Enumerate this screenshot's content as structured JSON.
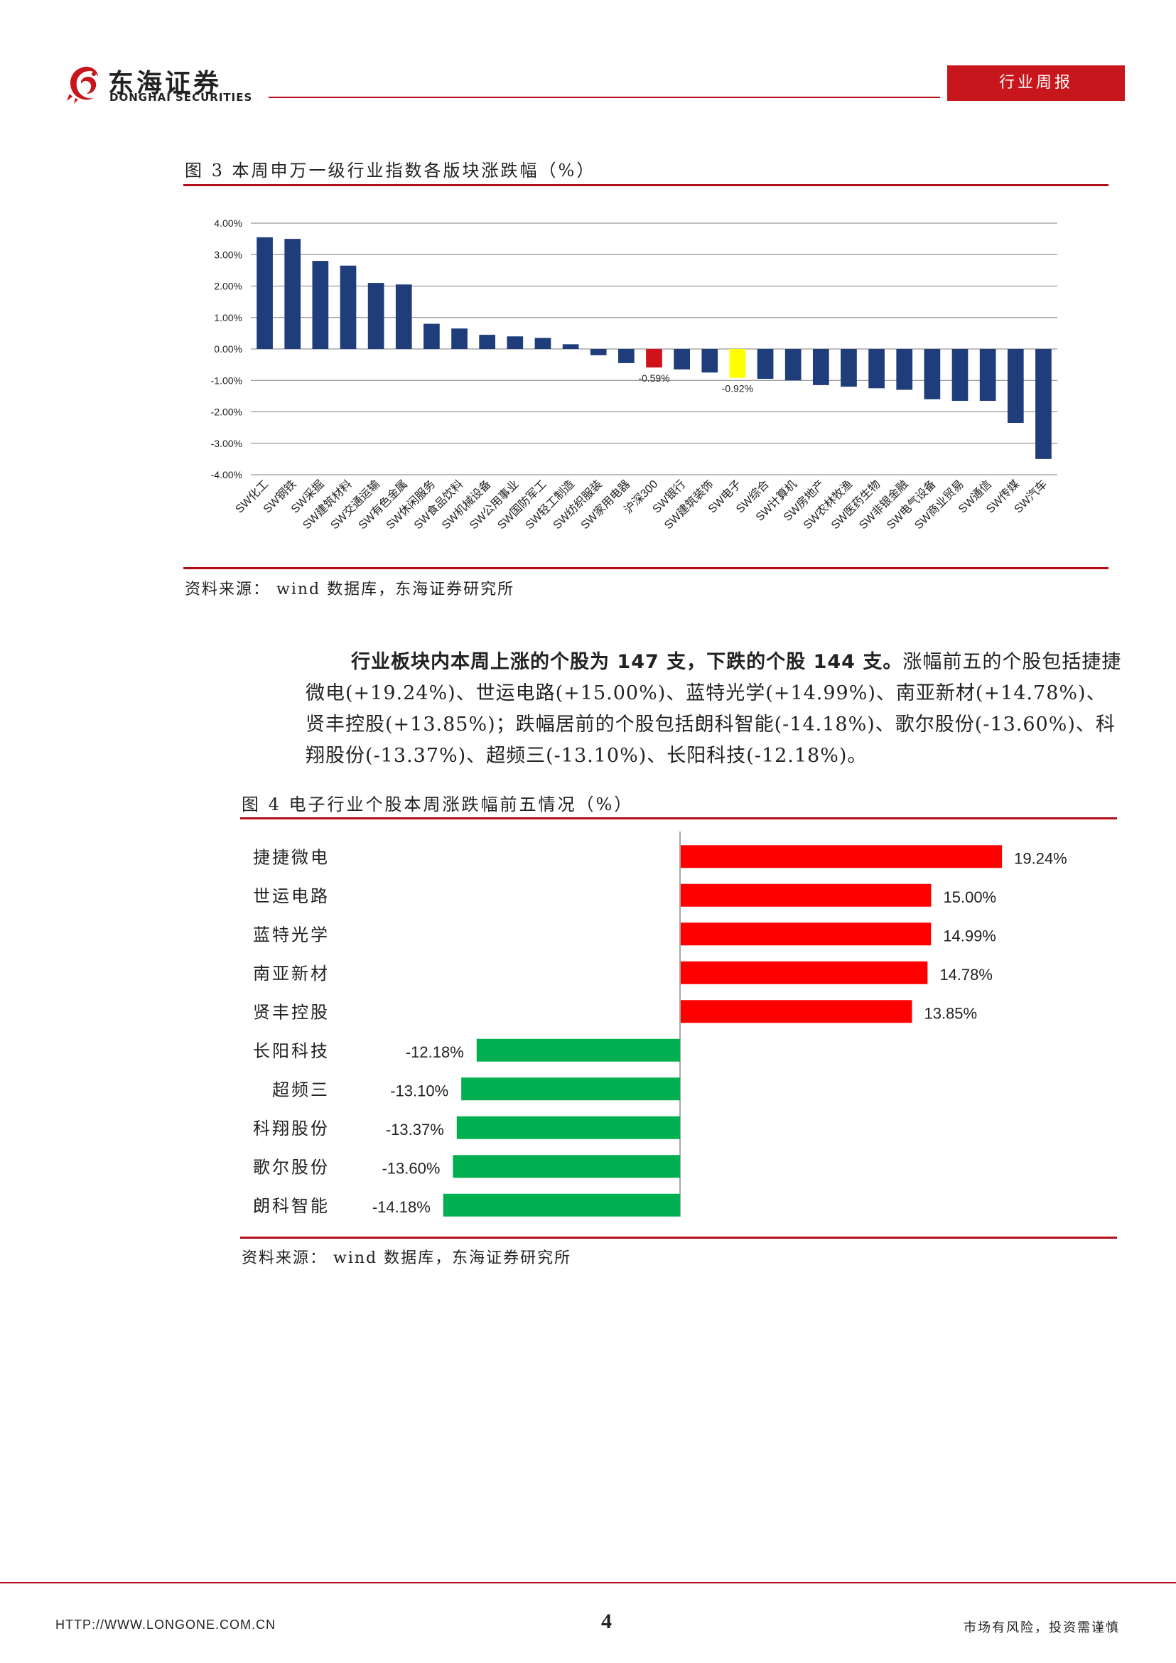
{
  "header": {
    "company_cn": "东海证券",
    "company_en": "DONGHAI SECURITIES",
    "report_type": "行业周报",
    "brand_color": "#c8161d"
  },
  "figure3": {
    "caption": "图 3 本周申万一级行业指数各版块涨跌幅（%）",
    "source": "资料来源： wind 数据库，东海证券研究所"
  },
  "paragraph": {
    "lead_1": "行业板块内本周上涨的个股为 ",
    "up_count": "147",
    "lead_2": " 支，下跌的个股 ",
    "down_count": "144",
    "lead_3": " 支。",
    "body": "涨幅前五的个股包括捷捷微电(+19.24%)、世运电路(+15.00%)、蓝特光学(+14.99%)、南亚新材(+14.78%)、贤丰控股(+13.85%)；跌幅居前的个股包括朗科智能(-14.18%)、歌尔股份(-13.60%)、科翔股份(-13.37%)、超频三(-13.10%)、长阳科技(-12.18%)。"
  },
  "figure4": {
    "caption": "图 4 电子行业个股本周涨跌幅前五情况（%）",
    "source": "资料来源： wind 数据库，东海证券研究所"
  },
  "footer": {
    "url": "HTTP://WWW.LONGONE.COM.CN",
    "page": "4",
    "risk": "市场有风险，投资需谨慎"
  },
  "chart_data": [
    {
      "type": "bar",
      "categories": [
        "SW化工",
        "SW钢铁",
        "SW采掘",
        "SW建筑材料",
        "SW交通运输",
        "SW有色金属",
        "SW休闲服务",
        "SW食品饮料",
        "SW机械设备",
        "SW公用事业",
        "SW国防军工",
        "SW轻工制造",
        "SW纺织服装",
        "SW家用电器",
        "沪深300",
        "SW银行",
        "SW建筑装饰",
        "SW电子",
        "SW综合",
        "SW计算机",
        "SW房地产",
        "SW农林牧渔",
        "SW医药生物",
        "SW非银金融",
        "SW电气设备",
        "SW商业贸易",
        "SW通信",
        "SW传媒",
        "SW汽车"
      ],
      "values": [
        3.55,
        3.5,
        2.8,
        2.65,
        2.1,
        2.05,
        0.8,
        0.65,
        0.45,
        0.4,
        0.35,
        0.15,
        -0.2,
        -0.45,
        -0.59,
        -0.65,
        -0.75,
        -0.92,
        -0.95,
        -1.0,
        -1.15,
        -1.2,
        -1.25,
        -1.3,
        -1.6,
        -1.65,
        -1.65,
        -2.35,
        -3.5
      ],
      "highlight": {
        "沪深300": "#d0121b",
        "SW电子": "#ffff00"
      },
      "bar_color": "#1f3d7a",
      "data_labels": {
        "沪深300": "-0.59%",
        "SW电子": "-0.92%"
      },
      "yticks": [
        "4.00%",
        "3.00%",
        "2.00%",
        "1.00%",
        "0.00%",
        "-1.00%",
        "-2.00%",
        "-3.00%",
        "-4.00%"
      ],
      "ylim": [
        -4,
        4
      ],
      "grid": true
    },
    {
      "type": "bar",
      "orientation": "horizontal",
      "categories": [
        "捷捷微电",
        "世运电路",
        "蓝特光学",
        "南亚新材",
        "贤丰控股",
        "长阳科技",
        "超频三",
        "科翔股份",
        "歌尔股份",
        "朗科智能"
      ],
      "values": [
        19.24,
        15.0,
        14.99,
        14.78,
        13.85,
        -12.18,
        -13.1,
        -13.37,
        -13.6,
        -14.18
      ],
      "labels": [
        "19.24%",
        "15.00%",
        "14.99%",
        "14.78%",
        "13.85%",
        "-12.18%",
        "-13.10%",
        "-13.37%",
        "-13.60%",
        "-14.18%"
      ],
      "positive_color": "#ff0000",
      "negative_color": "#00b050"
    }
  ]
}
